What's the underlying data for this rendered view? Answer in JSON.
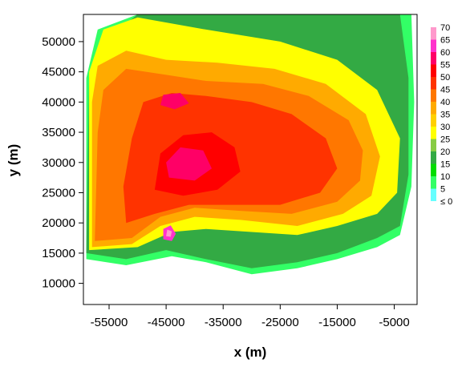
{
  "chart_data": {
    "type": "heatmap",
    "xlabel": "x (m)",
    "ylabel": "y (m)",
    "xlim": [
      -59500,
      -1000
    ],
    "ylim": [
      6500,
      54500
    ],
    "xticks": [
      -55000,
      -45000,
      -35000,
      -25000,
      -15000,
      -5000
    ],
    "xtick_labels": [
      "-55000",
      "-45000",
      "-35000",
      "-25000",
      "-15000",
      "-5000"
    ],
    "yticks": [
      10000,
      15000,
      20000,
      25000,
      30000,
      35000,
      40000,
      45000,
      50000
    ],
    "ytick_labels": [
      "10000",
      "15000",
      "20000",
      "25000",
      "30000",
      "35000",
      "40000",
      "45000",
      "50000"
    ],
    "colorbar": {
      "levels": [
        5,
        10,
        15,
        20,
        25,
        30,
        35,
        40,
        45,
        50,
        55,
        60,
        65,
        70
      ],
      "labels": [
        "70",
        "65",
        "60",
        "55",
        "50",
        "45",
        "40",
        "35",
        "30",
        "25",
        "20",
        "15",
        "10",
        "5",
        "≤ 0"
      ],
      "colors": [
        "#66ffff",
        "#33ff66",
        "#00dd00",
        "#33aa44",
        "#88cc44",
        "#ffff00",
        "#ffd000",
        "#ffaa00",
        "#ff7700",
        "#ff3300",
        "#ff0000",
        "#ff0066",
        "#ff33cc",
        "#ff99cc"
      ]
    },
    "regions": [
      {
        "level": 10,
        "polygon": [
          [
            -59000,
            14000
          ],
          [
            -52000,
            13000
          ],
          [
            -44000,
            14500
          ],
          [
            -38000,
            13500
          ],
          [
            -30000,
            11500
          ],
          [
            -22000,
            12500
          ],
          [
            -15000,
            14000
          ],
          [
            -8000,
            16000
          ],
          [
            -4000,
            18000
          ],
          [
            -2000,
            26000
          ],
          [
            -1500,
            40000
          ],
          [
            -2000,
            54500
          ],
          [
            -50000,
            54500
          ],
          [
            -57000,
            52000
          ],
          [
            -59000,
            44000
          ]
        ]
      },
      {
        "level": 20,
        "polygon": [
          [
            -59000,
            15000
          ],
          [
            -52000,
            14000
          ],
          [
            -45000,
            15500
          ],
          [
            -38000,
            14000
          ],
          [
            -30000,
            12500
          ],
          [
            -22000,
            13500
          ],
          [
            -15000,
            15000
          ],
          [
            -8000,
            17500
          ],
          [
            -4000,
            19500
          ],
          [
            -2500,
            28000
          ],
          [
            -2500,
            44000
          ],
          [
            -4000,
            54500
          ],
          [
            -50000,
            54500
          ],
          [
            -56000,
            50000
          ],
          [
            -58500,
            44000
          ]
        ]
      },
      {
        "level": 30,
        "polygon": [
          [
            -58500,
            15500
          ],
          [
            -50000,
            16000
          ],
          [
            -44000,
            18500
          ],
          [
            -38000,
            19000
          ],
          [
            -30000,
            18500
          ],
          [
            -22000,
            18000
          ],
          [
            -15000,
            19500
          ],
          [
            -8000,
            21500
          ],
          [
            -4500,
            25000
          ],
          [
            -4000,
            34000
          ],
          [
            -8000,
            42000
          ],
          [
            -15000,
            47000
          ],
          [
            -25000,
            50000
          ],
          [
            -38000,
            52000
          ],
          [
            -50000,
            54000
          ],
          [
            -56000,
            52000
          ],
          [
            -58500,
            45000
          ]
        ]
      },
      {
        "level": 40,
        "polygon": [
          [
            -58000,
            16000
          ],
          [
            -51000,
            16500
          ],
          [
            -46000,
            19500
          ],
          [
            -40000,
            21000
          ],
          [
            -32000,
            20500
          ],
          [
            -22000,
            19500
          ],
          [
            -14000,
            21500
          ],
          [
            -9000,
            24500
          ],
          [
            -7500,
            31000
          ],
          [
            -10000,
            38000
          ],
          [
            -17000,
            43000
          ],
          [
            -26000,
            45500
          ],
          [
            -36000,
            46500
          ],
          [
            -45000,
            47000
          ],
          [
            -52000,
            48500
          ],
          [
            -57000,
            46000
          ],
          [
            -58000,
            40000
          ]
        ]
      },
      {
        "level": 45,
        "polygon": [
          [
            -57500,
            17000
          ],
          [
            -51000,
            17500
          ],
          [
            -46000,
            21000
          ],
          [
            -40000,
            22500
          ],
          [
            -32000,
            22000
          ],
          [
            -23000,
            21500
          ],
          [
            -15000,
            23500
          ],
          [
            -11000,
            27000
          ],
          [
            -10500,
            32000
          ],
          [
            -13000,
            37000
          ],
          [
            -20000,
            41000
          ],
          [
            -28000,
            43000
          ],
          [
            -38000,
            43500
          ],
          [
            -45000,
            44500
          ],
          [
            -52000,
            45500
          ],
          [
            -56000,
            42000
          ],
          [
            -57000,
            35000
          ]
        ]
      },
      {
        "level": 50,
        "polygon": [
          [
            -52000,
            20000
          ],
          [
            -47000,
            21500
          ],
          [
            -41000,
            23000
          ],
          [
            -33000,
            23000
          ],
          [
            -25000,
            23000
          ],
          [
            -18000,
            25000
          ],
          [
            -15000,
            29000
          ],
          [
            -17000,
            34000
          ],
          [
            -23000,
            38000
          ],
          [
            -30000,
            40000
          ],
          [
            -38000,
            41000
          ],
          [
            -44000,
            41500
          ],
          [
            -49000,
            40000
          ],
          [
            -51000,
            34000
          ],
          [
            -52500,
            26000
          ]
        ]
      },
      {
        "level": 55,
        "polygon": [
          [
            -47000,
            25500
          ],
          [
            -42000,
            24500
          ],
          [
            -36000,
            25500
          ],
          [
            -32000,
            28500
          ],
          [
            -33000,
            32500
          ],
          [
            -37000,
            35000
          ],
          [
            -42000,
            34500
          ],
          [
            -46000,
            31500
          ]
        ]
      },
      {
        "level": 60,
        "polygon": [
          [
            -44500,
            27500
          ],
          [
            -40000,
            27000
          ],
          [
            -37000,
            29000
          ],
          [
            -38500,
            32000
          ],
          [
            -42500,
            32500
          ],
          [
            -45000,
            30000
          ]
        ]
      },
      {
        "level": 60,
        "polygon": [
          [
            -46000,
            39500
          ],
          [
            -43500,
            38800
          ],
          [
            -41000,
            39800
          ],
          [
            -42500,
            41500
          ],
          [
            -45500,
            41200
          ]
        ]
      },
      {
        "level": 65,
        "polygon": [
          [
            -45500,
            17300
          ],
          [
            -44000,
            17000
          ],
          [
            -43300,
            18200
          ],
          [
            -44200,
            19600
          ],
          [
            -45500,
            19000
          ]
        ]
      },
      {
        "level": 70,
        "polygon": [
          [
            -45000,
            17800
          ],
          [
            -44200,
            17700
          ],
          [
            -44000,
            18600
          ],
          [
            -44800,
            18900
          ]
        ]
      }
    ]
  }
}
